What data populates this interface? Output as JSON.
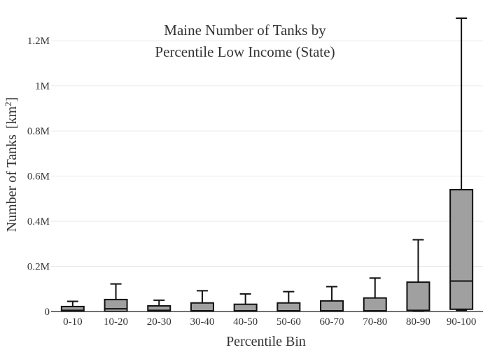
{
  "chart_data": {
    "type": "box",
    "title_lines": [
      "Maine Number of Tanks by",
      "Percentile Low Income (State)"
    ],
    "xlabel": "Percentile Bin",
    "ylabel": "Number of Tanks",
    "ylabel_unit": "[km",
    "ylabel_unit_sup": "2",
    "ylabel_unit_close": "]",
    "ylim": [
      0,
      1300000
    ],
    "y_ticks": [
      {
        "value": 0,
        "label": "0"
      },
      {
        "value": 200000,
        "label": "0.2M"
      },
      {
        "value": 400000,
        "label": "0.4M"
      },
      {
        "value": 600000,
        "label": "0.6M"
      },
      {
        "value": 800000,
        "label": "0.8M"
      },
      {
        "value": 1000000,
        "label": "1M"
      },
      {
        "value": 1200000,
        "label": "1.2M"
      }
    ],
    "grid": true,
    "categories": [
      "0-10",
      "10-20",
      "20-30",
      "30-40",
      "40-50",
      "50-60",
      "60-70",
      "70-80",
      "80-90",
      "90-100"
    ],
    "boxes": [
      {
        "min": 0,
        "q1": 0,
        "median": 5000,
        "q3": 22000,
        "max": 45000
      },
      {
        "min": 0,
        "q1": 0,
        "median": 12000,
        "q3": 53000,
        "max": 122000
      },
      {
        "min": 0,
        "q1": 0,
        "median": 5000,
        "q3": 25000,
        "max": 50000
      },
      {
        "min": 0,
        "q1": 0,
        "median": 3000,
        "q3": 38000,
        "max": 92000
      },
      {
        "min": 0,
        "q1": 0,
        "median": 3000,
        "q3": 32000,
        "max": 78000
      },
      {
        "min": 0,
        "q1": 0,
        "median": 3000,
        "q3": 38000,
        "max": 88000
      },
      {
        "min": 0,
        "q1": 0,
        "median": 3000,
        "q3": 47000,
        "max": 110000
      },
      {
        "min": 0,
        "q1": 0,
        "median": 3000,
        "q3": 60000,
        "max": 148000
      },
      {
        "min": 0,
        "q1": 2000,
        "median": 5000,
        "q3": 130000,
        "max": 318000
      },
      {
        "min": 5000,
        "q1": 10000,
        "median": 135000,
        "q3": 540000,
        "max": 1300000
      }
    ],
    "colors": {
      "box_fill": "#a0a0a0",
      "box_stroke": "#111111",
      "grid": "#e9e9e9"
    }
  }
}
